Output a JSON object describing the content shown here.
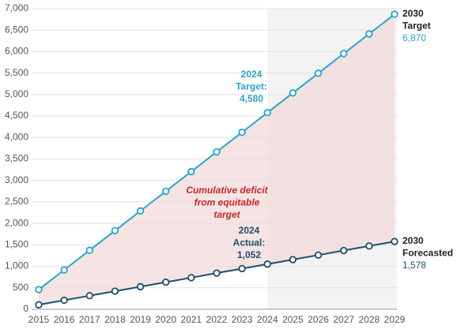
{
  "chart_data": {
    "type": "line",
    "categories": [
      "2015",
      "2016",
      "2017",
      "2018",
      "2019",
      "2020",
      "2021",
      "2022",
      "2023",
      "2024",
      "2025",
      "2026",
      "2027",
      "2028",
      "2029"
    ],
    "series": [
      {
        "name": "Target",
        "color": "#2ba3cc",
        "values": [
          458,
          916,
          1374,
          1832,
          2290,
          2748,
          3206,
          3664,
          4122,
          4580,
          5038,
          5496,
          5954,
          6412,
          6870
        ]
      },
      {
        "name": "Actual",
        "color": "#1c4e6c",
        "values": [
          105,
          210,
          316,
          421,
          526,
          631,
          736,
          842,
          947,
          1052,
          1157,
          1262,
          1368,
          1473,
          1578
        ]
      }
    ],
    "ylim": [
      0,
      7000
    ],
    "yticks": [
      0,
      500,
      {
        "value": 1000,
        "label": "1,000"
      },
      {
        "value": 1500,
        "label": "1,500"
      },
      {
        "value": 2000,
        "label": "2,000"
      },
      {
        "value": 2500,
        "label": "2,500"
      },
      {
        "value": 3000,
        "label": "3,000"
      },
      {
        "value": 3500,
        "label": "3,500"
      },
      {
        "value": 4000,
        "label": "4,000"
      },
      {
        "value": 4500,
        "label": "4,500"
      },
      {
        "value": 5000,
        "label": "5,000"
      },
      {
        "value": 5500,
        "label": "5,500"
      },
      {
        "value": 6000,
        "label": "6,000"
      },
      {
        "value": 6500,
        "label": "6,500"
      },
      {
        "value": 7000,
        "label": "7,000"
      }
    ],
    "grid": true,
    "fill_between_color": "#f3d9d9",
    "shaded_region": {
      "from": "2024",
      "color": "#f3f3f3"
    },
    "annotations": {
      "target_2024": [
        "2024",
        "Target:",
        "4,580"
      ],
      "actual_2024": [
        "2024",
        "Actual:",
        "1,052"
      ],
      "deficit": [
        "Cumulative deficit",
        "from equitable",
        "target"
      ],
      "target_2030": [
        "2030",
        "Target",
        "6,870"
      ],
      "forecast_2030": [
        "2030",
        "Forecasted",
        "1,578"
      ]
    }
  }
}
